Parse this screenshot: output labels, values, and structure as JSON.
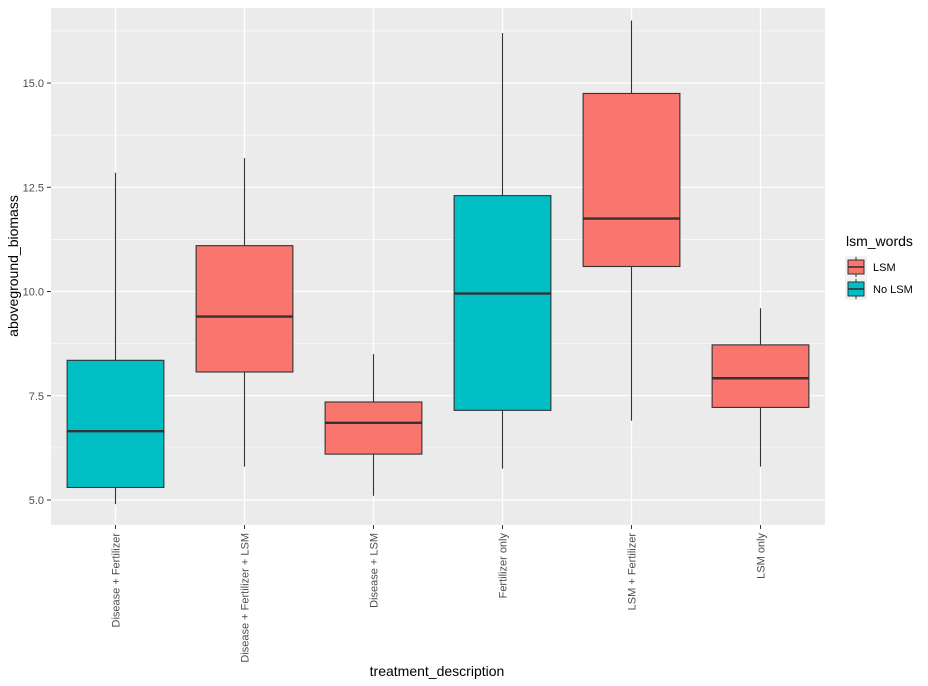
{
  "chart_data": {
    "type": "boxplot",
    "title": "",
    "xlabel": "treatment_description",
    "ylabel": "aboveground_biomass",
    "ylim": [
      4.4,
      16.8
    ],
    "yticks": [
      5.0,
      7.5,
      10.0,
      12.5,
      15.0
    ],
    "ytick_labels": [
      "5.0",
      "7.5",
      "10.0",
      "12.5",
      "15.0"
    ],
    "grid": true,
    "legend": {
      "title": "lsm_words",
      "position": "right",
      "entries": [
        {
          "label": "LSM",
          "color": "#F8766D"
        },
        {
          "label": "No LSM",
          "color": "#00BFC4"
        }
      ]
    },
    "categories": [
      "Disease + Fertilizer",
      "Disease + Fertilizer + LSM",
      "Disease + LSM",
      "Fertilizer only",
      "LSM + Fertilizer",
      "LSM only"
    ],
    "boxes": [
      {
        "category": "Disease + Fertilizer",
        "group": "No LSM",
        "min": 4.9,
        "q1": 5.3,
        "median": 6.65,
        "q3": 8.35,
        "max": 12.85
      },
      {
        "category": "Disease + Fertilizer + LSM",
        "group": "LSM",
        "min": 5.8,
        "q1": 8.07,
        "median": 9.4,
        "q3": 11.1,
        "max": 13.2
      },
      {
        "category": "Disease + LSM",
        "group": "LSM",
        "min": 5.1,
        "q1": 6.1,
        "median": 6.85,
        "q3": 7.35,
        "max": 8.5
      },
      {
        "category": "Fertilizer only",
        "group": "No LSM",
        "min": 5.75,
        "q1": 7.15,
        "median": 9.95,
        "q3": 12.3,
        "max": 16.2
      },
      {
        "category": "LSM + Fertilizer",
        "group": "LSM",
        "min": 6.9,
        "q1": 10.6,
        "median": 11.75,
        "q3": 14.75,
        "max": 16.5
      },
      {
        "category": "LSM only",
        "group": "LSM",
        "min": 5.8,
        "q1": 7.22,
        "median": 7.92,
        "q3": 8.72,
        "max": 9.6
      }
    ],
    "colors": {
      "LSM": "#F8766D",
      "No LSM": "#00BFC4",
      "panel": "#EBEBEB",
      "grid": "#FFFFFF",
      "outline": "#333333"
    }
  }
}
